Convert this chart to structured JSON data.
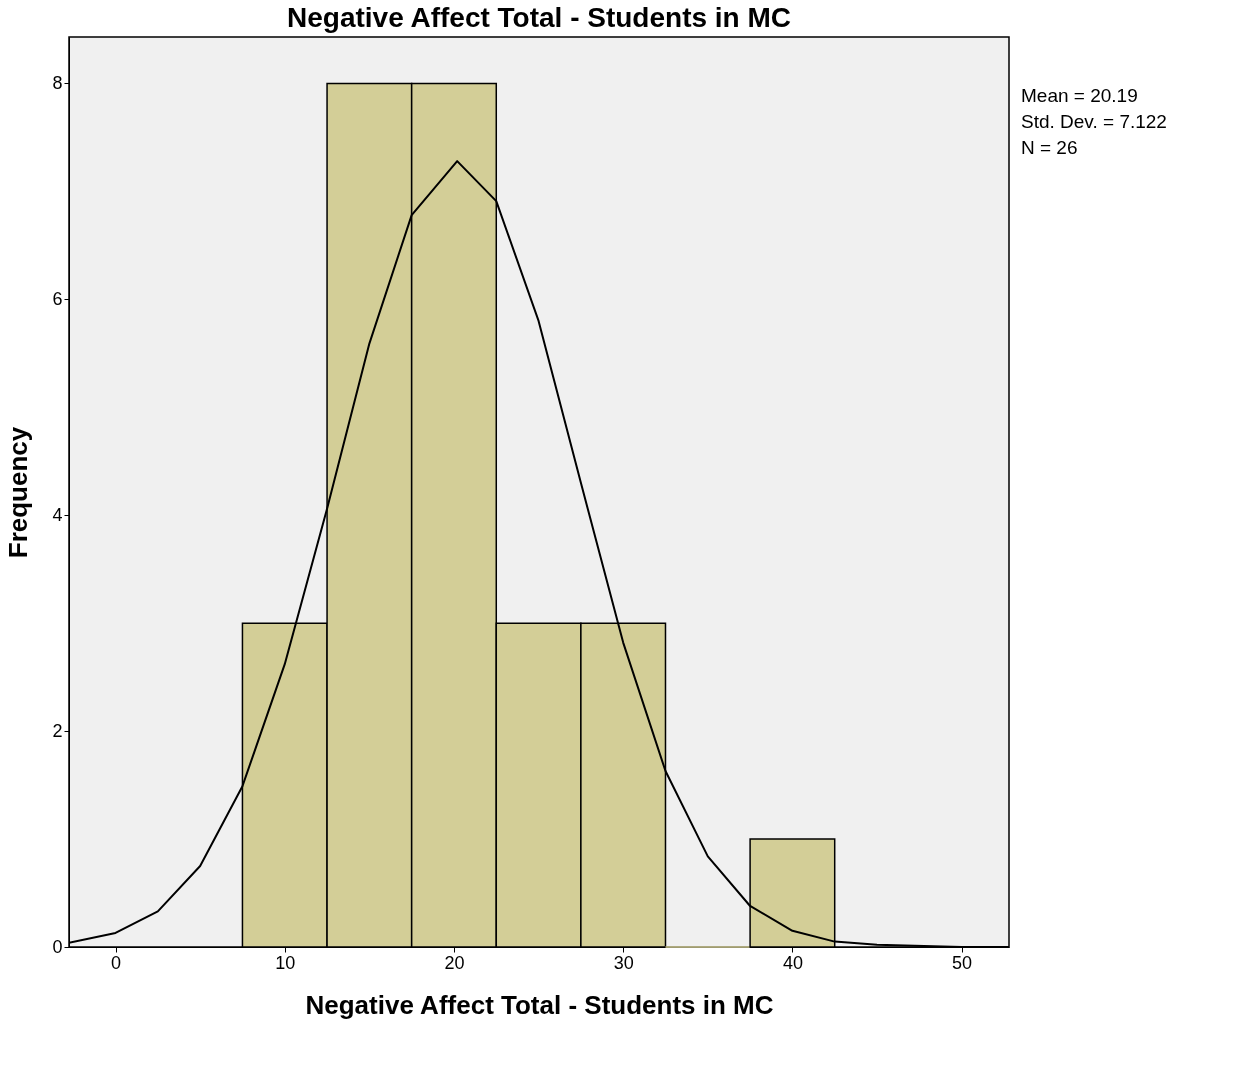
{
  "chart_data": {
    "type": "histogram",
    "title": "Negative Affect Total - Students in MC",
    "xlabel": "Negative Affect Total - Students in MC",
    "ylabel": "Frequency",
    "bins": [
      7.5,
      12.5,
      17.5,
      22.5,
      27.5,
      32.5,
      37.5,
      42.5
    ],
    "values": [
      3,
      8,
      8,
      3,
      3,
      0,
      1
    ],
    "color": "#d3ce97",
    "series": [
      {
        "type": "line",
        "color": "#000000",
        "x": [
          -2.75,
          0,
          2.5,
          5,
          7.5,
          10,
          12.5,
          15,
          17.5,
          20.19,
          22.5,
          25,
          27.5,
          30,
          32.5,
          35,
          37.5,
          40,
          42.5,
          45,
          50,
          52.8
        ],
        "values": [
          0.04,
          0.13,
          0.33,
          0.75,
          1.49,
          2.62,
          4.06,
          5.59,
          6.78,
          7.28,
          6.91,
          5.8,
          4.3,
          2.82,
          1.63,
          0.84,
          0.38,
          0.15,
          0.05,
          0.02,
          0.0,
          0.0
        ]
      }
    ],
    "xlim": [
      -2.75,
      52.8
    ],
    "ylim": [
      0,
      8.43
    ],
    "xticks": [
      0,
      10,
      20,
      30,
      40,
      50
    ],
    "yticks": [
      0,
      2,
      4,
      6,
      8
    ],
    "grid": false,
    "annotations": [
      "Mean = 20.19",
      "Std. Dev. = 7.122",
      "N = 26"
    ]
  }
}
